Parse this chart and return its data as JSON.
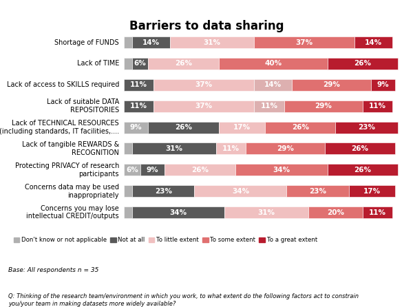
{
  "title": "Barriers to data sharing",
  "rows": [
    {
      "label": "Shortage of FUNDS",
      "segs": [
        3,
        14,
        31,
        37,
        14
      ],
      "n_cats": 5
    },
    {
      "label": "Lack of TIME",
      "segs": [
        3,
        6,
        26,
        40,
        26
      ],
      "n_cats": 5
    },
    {
      "label": "Lack of access to SKILLS required",
      "segs": [
        0,
        11,
        37,
        14,
        29,
        9
      ],
      "n_cats": 6
    },
    {
      "label": "Lack of suitable DATA\nREPOSITORIES",
      "segs": [
        0,
        11,
        37,
        11,
        29,
        11
      ],
      "n_cats": 6
    },
    {
      "label": "Lack of TECHNICAL RESOURCES\n(including standards, IT facilities,....",
      "segs": [
        9,
        26,
        17,
        26,
        23
      ],
      "n_cats": 5
    },
    {
      "label": "Lack of tangible REWARDS &\nRECOGNITION",
      "segs": [
        3,
        31,
        11,
        29,
        26
      ],
      "n_cats": 5
    },
    {
      "label": "Protecting PRIVACY of research\nparticipants",
      "segs": [
        6,
        9,
        26,
        34,
        26
      ],
      "n_cats": 5
    },
    {
      "label": "Concerns data may be used\ninappropriately",
      "segs": [
        3,
        23,
        34,
        23,
        17
      ],
      "n_cats": 5
    },
    {
      "label": "Concerns you may lose\nintellectual CREDIT/outputs",
      "segs": [
        3,
        34,
        31,
        20,
        11
      ],
      "n_cats": 5
    }
  ],
  "colors_5": [
    "#b0b0b0",
    "#595959",
    "#f0c0c0",
    "#e07070",
    "#b81c2e"
  ],
  "colors_6": [
    "#b0b0b0",
    "#595959",
    "#f0c0c0",
    "#ddb0b0",
    "#e07070",
    "#b81c2e"
  ],
  "legend_labels": [
    "Don't know or not applicable",
    "Not at all",
    "To little extent",
    "To some extent",
    "To a great extent"
  ],
  "legend_colors": [
    "#b0b0b0",
    "#595959",
    "#f0c0c0",
    "#e07070",
    "#b81c2e"
  ],
  "base_text": "Base: All respondents n = 35",
  "footnote": "Q: Thinking of the research team/environment in which you work, to what extent do the following factors act to constrain\nyou/your team in making datasets more widely available?",
  "title_fontsize": 12,
  "label_fontsize": 7,
  "bar_label_fontsize": 7.5,
  "bar_height": 0.55,
  "xlim": 102
}
